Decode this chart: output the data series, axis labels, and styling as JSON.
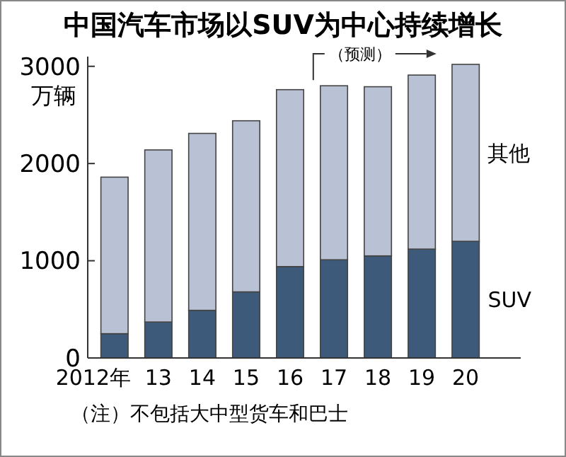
{
  "chart_data": {
    "type": "bar",
    "title": "中国汽车市场以SUV为中心持续增长",
    "ylabel": "万辆",
    "categories": [
      "2012年",
      "13",
      "14",
      "15",
      "16",
      "17",
      "18",
      "19",
      "20"
    ],
    "stacked": true,
    "series": [
      {
        "name": "SUV",
        "color": "#3d5a7a",
        "values": [
          250,
          370,
          490,
          680,
          940,
          1010,
          1050,
          1120,
          1200
        ]
      },
      {
        "name": "其他",
        "color": "#b9c1d5",
        "values": [
          1610,
          1770,
          1820,
          1760,
          1820,
          1790,
          1740,
          1790,
          1820
        ]
      }
    ],
    "ylim": [
      0,
      3100
    ],
    "yticks": [
      0,
      1000,
      2000,
      3000
    ],
    "grid": false,
    "legend": false,
    "annotations": [
      {
        "text": "（预测）",
        "x": "17",
        "y": 2800
      },
      "（注）不包括大中型货车和巴士"
    ]
  }
}
